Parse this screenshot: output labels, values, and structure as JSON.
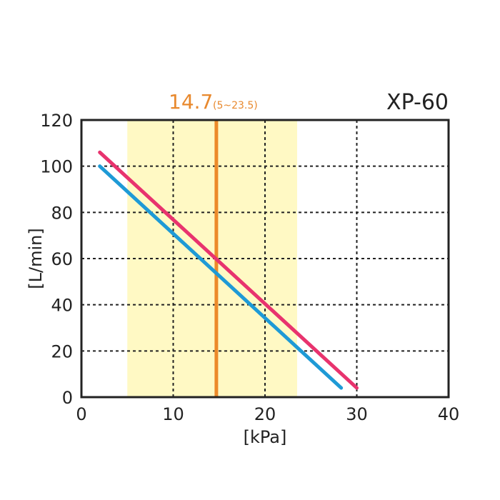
{
  "chart_data": {
    "type": "line",
    "title": "XP-60",
    "annotation": {
      "value_label": "14.7",
      "range_label": "(5~23.5)",
      "value": 14.7,
      "range": [
        5,
        23.5
      ]
    },
    "xlabel": "[kPa]",
    "ylabel": "[L/min]",
    "xlim": [
      0,
      40
    ],
    "ylim": [
      0,
      120
    ],
    "xticks": [
      0,
      10,
      20,
      30,
      40
    ],
    "yticks": [
      0,
      20,
      40,
      60,
      80,
      100,
      120
    ],
    "grid": true,
    "series": [
      {
        "color": "#e8336e",
        "points": [
          [
            2,
            106
          ],
          [
            30,
            4
          ]
        ]
      },
      {
        "color": "#1e9ad6",
        "points": [
          [
            2,
            100
          ],
          [
            28.3,
            4
          ]
        ]
      }
    ],
    "colors": {
      "band": "#fff9c4",
      "marker": "#ec8a2a",
      "annotation_text": "#e8892e",
      "axis": "#222222"
    }
  }
}
